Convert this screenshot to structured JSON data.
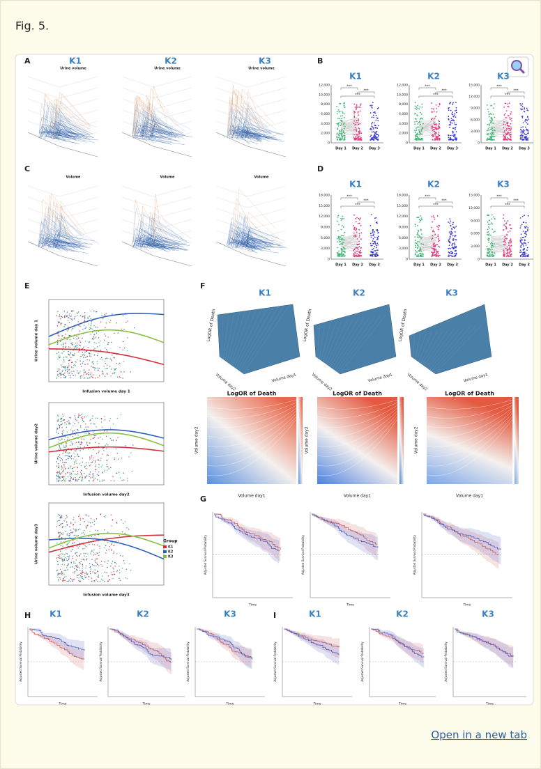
{
  "header": {
    "title": "Fig. 5."
  },
  "figure": {
    "panels": {
      "A": {
        "label": "A",
        "groups": [
          "K1",
          "K2",
          "K3"
        ],
        "subtitle": "Urine volume"
      },
      "B": {
        "label": "B",
        "groups": [
          "K1",
          "K2",
          "K3"
        ],
        "days": [
          "Day 1",
          "Day 2",
          "Day 3"
        ],
        "significance": "***",
        "yticks": [
          [
            "0",
            "2,000",
            "4,000",
            "6,000",
            "8,000",
            "10,000",
            "12,000"
          ],
          [
            "0",
            "2,000",
            "4,000",
            "6,000",
            "8,000",
            "10,000",
            "12,000"
          ],
          [
            "0",
            "3,000",
            "6,000",
            "9,000",
            "12,000",
            "15,000"
          ]
        ]
      },
      "C": {
        "label": "C",
        "subtitle": "Volume"
      },
      "D": {
        "label": "D",
        "groups": [
          "K1",
          "K2",
          "K3"
        ],
        "days": [
          "Day 1",
          "Day 2",
          "Day 3"
        ],
        "significance": "***",
        "yticks": [
          [
            "0",
            "3,000",
            "6,000",
            "9,000",
            "12,000",
            "15,000",
            "18,000"
          ],
          [
            "0",
            "3,000",
            "6,000",
            "9,000",
            "12,000",
            "15,000",
            "18,000"
          ],
          [
            "0",
            "3,000",
            "6,000",
            "9,000",
            "12,000",
            "15,000"
          ]
        ]
      },
      "E": {
        "label": "E",
        "y_labels": [
          "Urine volume day 1",
          "Urine volume day2",
          "Urine volume day3"
        ],
        "x_labels": [
          "Infusion volume day 1",
          "Infusion volume day2",
          "Infusion volume day3"
        ],
        "legend_title": "Group",
        "legend": [
          "K1",
          "K2",
          "K3"
        ]
      },
      "F": {
        "label": "F",
        "groups": [
          "K1",
          "K2",
          "K3"
        ],
        "z_label": "LogOR of Death",
        "heatmap_title": "LogOR of Death",
        "x_label": "Volume day1",
        "y_label": "Volume day2"
      },
      "G": {
        "label": "G",
        "y_label": "Adjusted Survival Probability",
        "x_label": "Time"
      },
      "H": {
        "label": "H",
        "groups": [
          "K1",
          "K2",
          "K3"
        ]
      },
      "I": {
        "label": "I",
        "groups": [
          "K1",
          "K2",
          "K3"
        ]
      }
    }
  },
  "link": {
    "text": "Open in a new tab"
  }
}
